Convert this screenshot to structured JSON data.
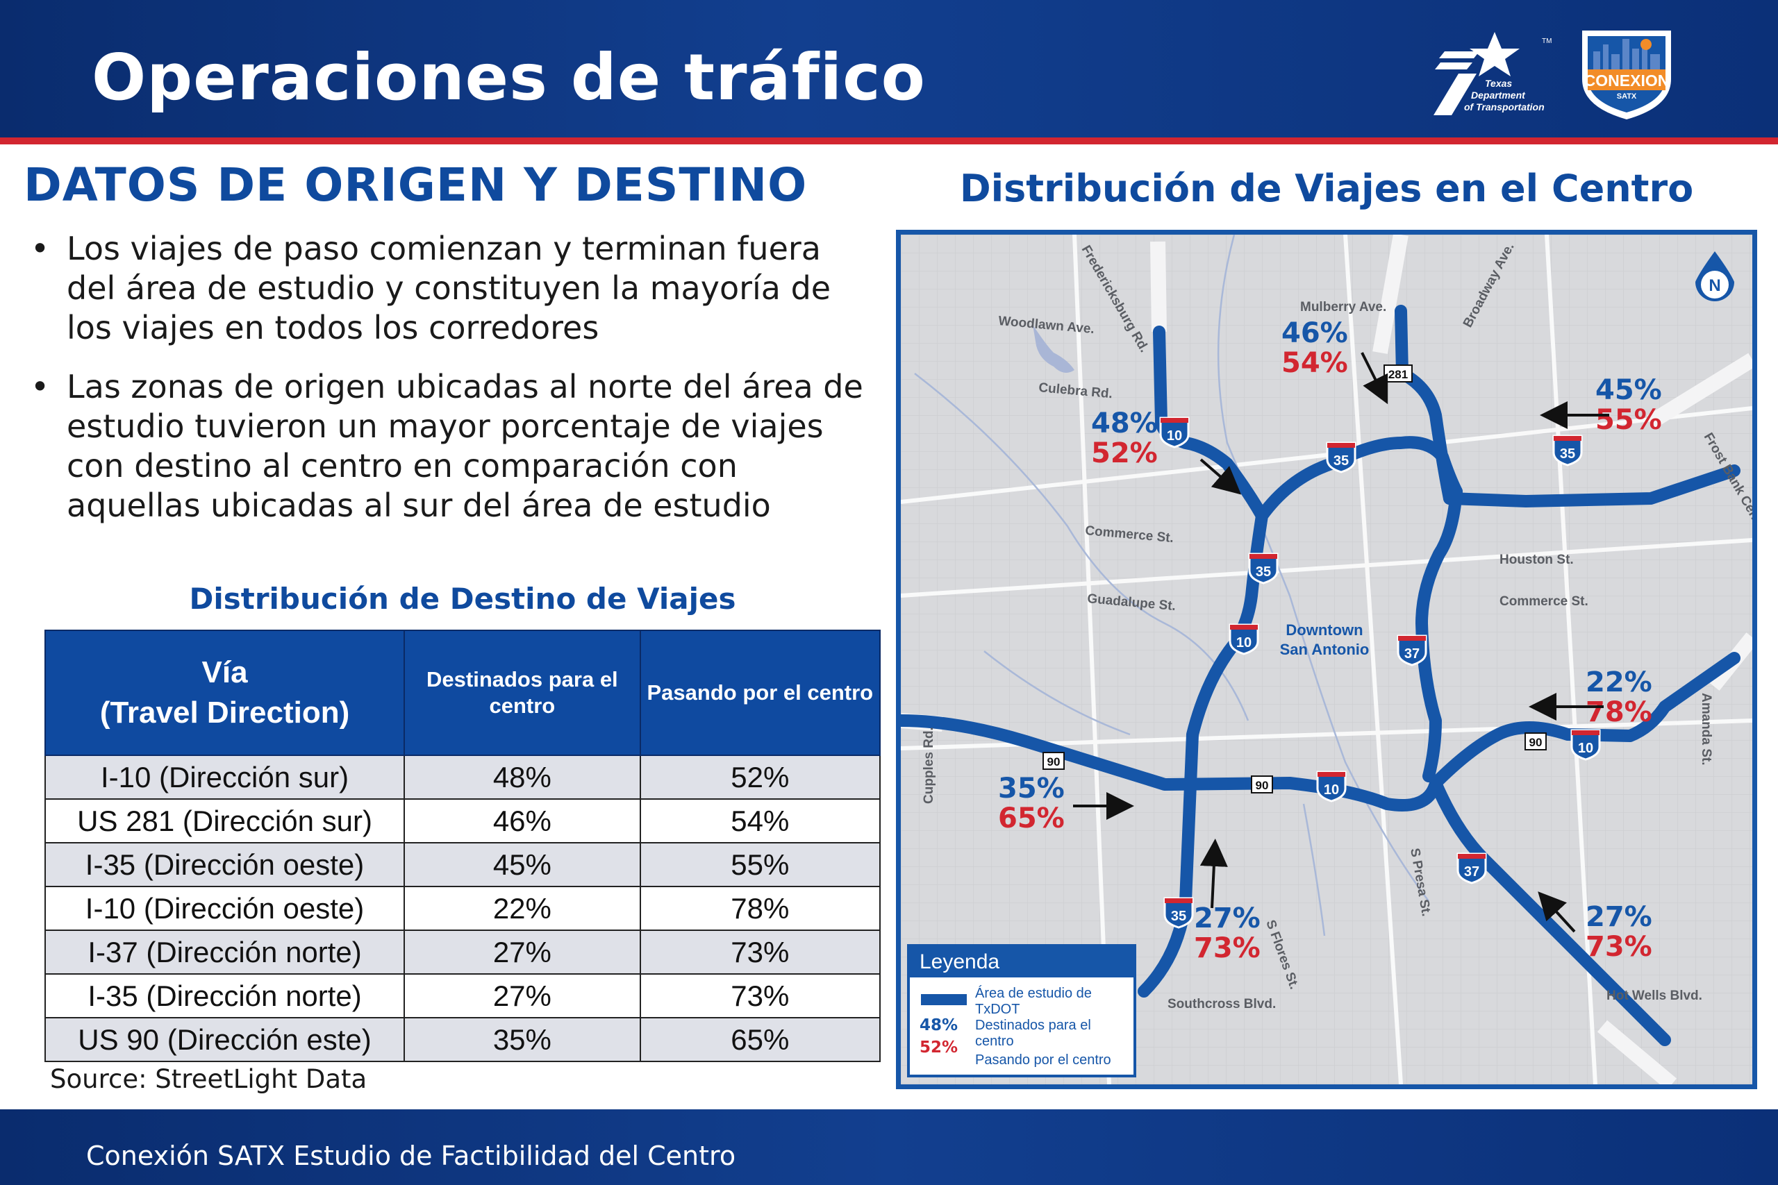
{
  "header": {
    "title": "Operaciones de tráfico"
  },
  "logos": {
    "txdot_line1": "Texas",
    "txdot_line2": "Department",
    "txdot_line3": "of Transportation",
    "txdot_tm": "TM",
    "conexion_name": "CONEXION",
    "conexion_sub": "SATX"
  },
  "left": {
    "heading": "DATOS DE ORIGEN Y DESTINO",
    "bullets": [
      "Los viajes de paso comienzan y terminan fuera del área de estudio y constituyen la mayoría de los viajes en todos los corredores",
      "Las zonas de origen ubicadas al norte del área de estudio tuvieron un mayor porcentaje de viajes con destino al centro en comparación con aquellas ubicadas al sur del área de estudio"
    ],
    "table_title": "Distribución de Destino de Viajes",
    "table": {
      "headers": [
        "Vía",
        "(Travel Direction)",
        "Destinados para el centro",
        "Pasando por el centro"
      ],
      "rows": [
        [
          "I-10 (Dirección sur)",
          "48%",
          "52%"
        ],
        [
          "US 281 (Dirección sur)",
          "46%",
          "54%"
        ],
        [
          "I-35 (Dirección oeste)",
          "45%",
          "55%"
        ],
        [
          "I-10 (Dirección oeste)",
          "22%",
          "78%"
        ],
        [
          "I-37 (Dirección norte)",
          "27%",
          "73%"
        ],
        [
          "I-35 (Dirección norte)",
          "27%",
          "73%"
        ],
        [
          "US 90 (Dirección este)",
          "35%",
          "65%"
        ]
      ]
    },
    "source": "Source: StreetLight Data"
  },
  "map": {
    "title": "Distribución de Viajes en el Centro",
    "north_label": "N",
    "downtown_line1": "Downtown",
    "downtown_line2": "San Antonio",
    "streets": {
      "fredericksburg": "Fredericksburg Rd.",
      "woodlawn": "Woodlawn Ave.",
      "mulberry": "Mulberry Ave.",
      "broadway": "Broadway Ave.",
      "culebra": "Culebra Rd.",
      "commerce_w": "Commerce St.",
      "guadalupe": "Guadalupe St.",
      "houston": "Houston St.",
      "commerce_e": "Commerce St.",
      "frost_bank": "Frost Bank Center Dr.",
      "amanda": "Amanda St.",
      "cupples": "Cupples Rd.",
      "presa": "S Presa St.",
      "flores": "S Flores St.",
      "southcross": "Southcross Blvd.",
      "hot_wells": "Hot Wells Blvd."
    },
    "shields": {
      "i10": "10",
      "i35": "35",
      "i37": "37",
      "us90": "90",
      "us281": "281"
    },
    "callouts": [
      {
        "dest": "48%",
        "pass": "52%"
      },
      {
        "dest": "46%",
        "pass": "54%"
      },
      {
        "dest": "45%",
        "pass": "55%"
      },
      {
        "dest": "22%",
        "pass": "78%"
      },
      {
        "dest": "35%",
        "pass": "65%"
      },
      {
        "dest": "27%",
        "pass": "73%"
      },
      {
        "dest": "27%",
        "pass": "73%"
      }
    ],
    "legend": {
      "title": "Leyenda",
      "study_area": "Área de estudio de TxDOT",
      "dest_pct": "48%",
      "dest_label": "Destinados para el centro",
      "pass_pct": "52%",
      "pass_label": "Pasando por el centro"
    },
    "colors": {
      "highway": "#1656a8",
      "dest": "#1656a8",
      "pass": "#d22630"
    }
  },
  "footer": {
    "text": "Conexión SATX Estudio de Factibilidad del Centro"
  }
}
